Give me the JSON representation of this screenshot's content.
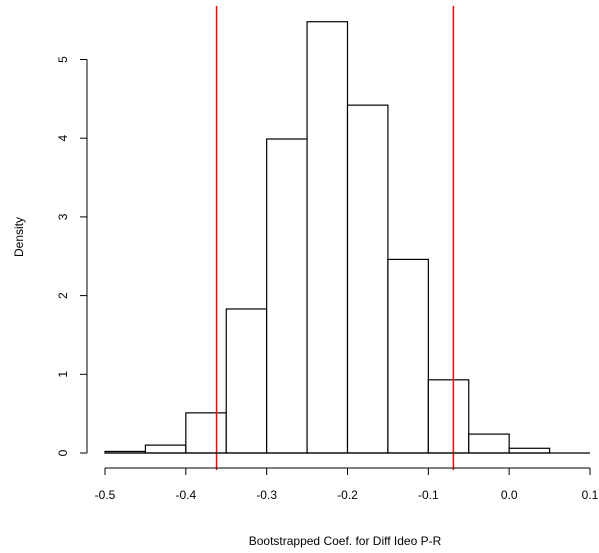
{
  "chart_data": {
    "type": "bar",
    "title": "",
    "xlabel": "Bootstrapped Coef. for Diff Ideo P-R",
    "ylabel": "Density",
    "xlim": [
      -0.5,
      0.1
    ],
    "ylim": [
      0,
      5.5
    ],
    "x_ticks": [
      "-0.5",
      "-0.4",
      "-0.3",
      "-0.2",
      "-0.1",
      "0.0",
      "0.1"
    ],
    "x_tick_values": [
      -0.5,
      -0.4,
      -0.3,
      -0.2,
      -0.1,
      0.0,
      0.1
    ],
    "y_ticks": [
      "0",
      "1",
      "2",
      "3",
      "4",
      "5"
    ],
    "y_tick_values": [
      0,
      1,
      2,
      3,
      4,
      5
    ],
    "bins": [
      {
        "x0": -0.5,
        "x1": -0.45,
        "density": 0.02
      },
      {
        "x0": -0.45,
        "x1": -0.4,
        "density": 0.1
      },
      {
        "x0": -0.4,
        "x1": -0.35,
        "density": 0.51
      },
      {
        "x0": -0.35,
        "x1": -0.3,
        "density": 1.83
      },
      {
        "x0": -0.3,
        "x1": -0.25,
        "density": 3.99
      },
      {
        "x0": -0.25,
        "x1": -0.2,
        "density": 5.48
      },
      {
        "x0": -0.2,
        "x1": -0.15,
        "density": 4.42
      },
      {
        "x0": -0.15,
        "x1": -0.1,
        "density": 2.46
      },
      {
        "x0": -0.1,
        "x1": -0.05,
        "density": 0.93
      },
      {
        "x0": -0.05,
        "x1": 0.0,
        "density": 0.24
      },
      {
        "x0": 0.0,
        "x1": 0.05,
        "density": 0.06
      }
    ],
    "reference_lines": [
      {
        "x": -0.362,
        "color": "#ff0000"
      },
      {
        "x": -0.069,
        "color": "#ff0000"
      }
    ],
    "grid": false,
    "legend": "none",
    "colors": {
      "bar_fill": "#ffffff",
      "bar_stroke": "#000000",
      "axis": "#000000",
      "reference_line": "#ff0000"
    }
  }
}
